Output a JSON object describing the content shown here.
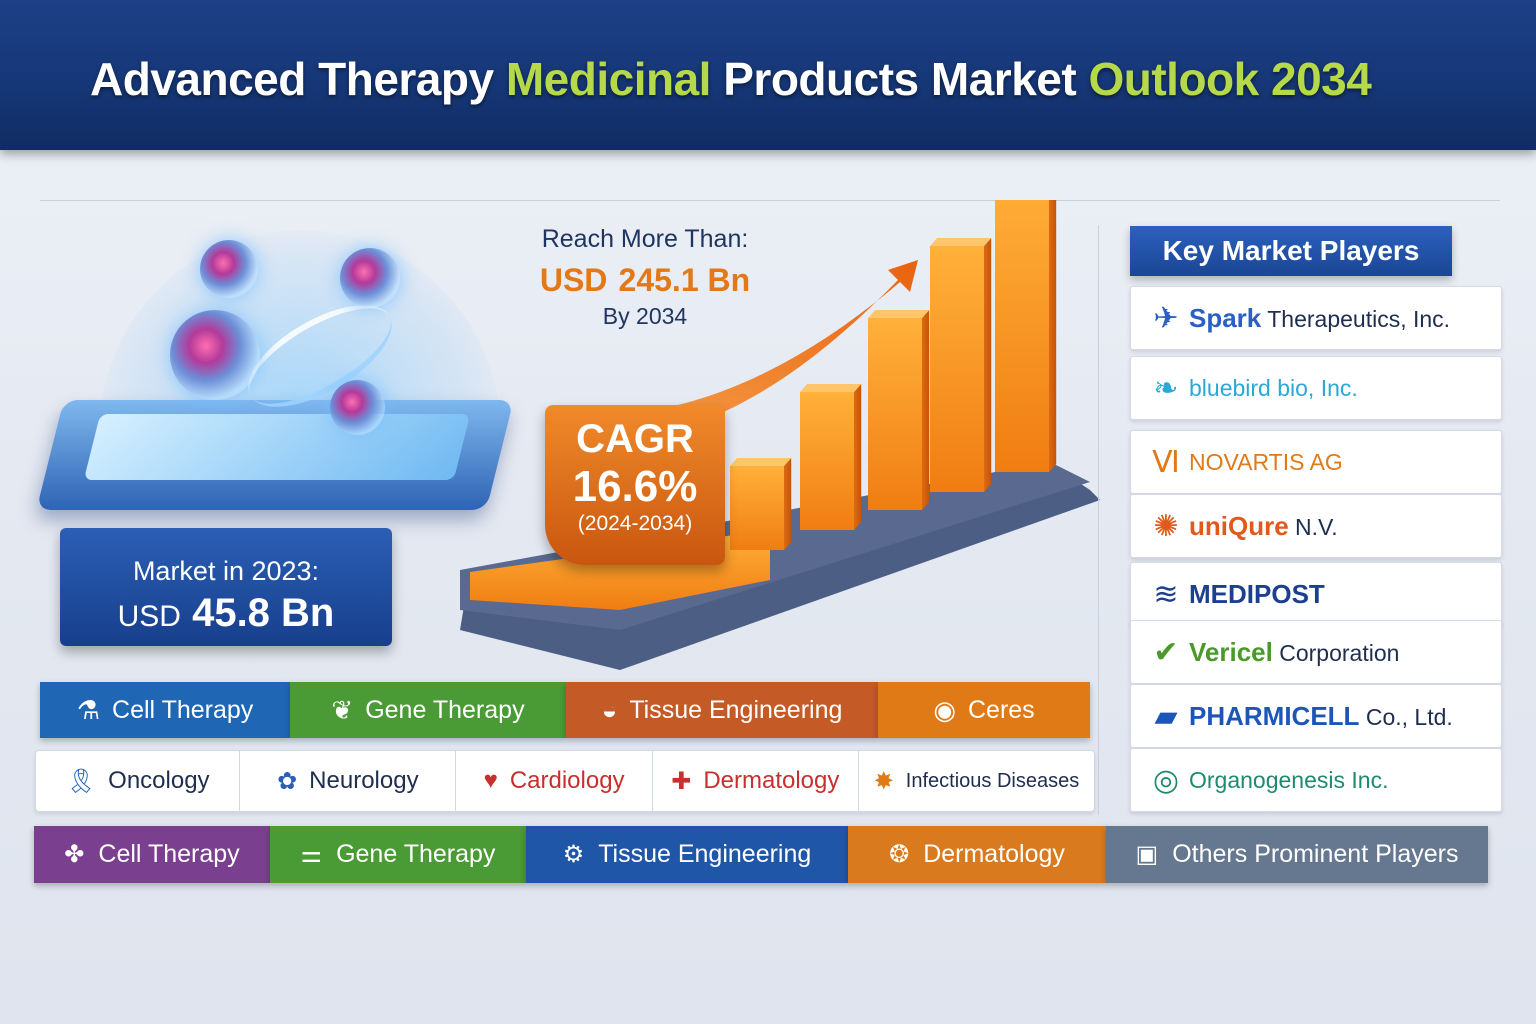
{
  "header": {
    "title_part1": "Advanced Therapy ",
    "title_part2": "Medicinal",
    "title_part3": " Products Market ",
    "title_part4": "Outlook 2034"
  },
  "market_2023": {
    "label": "Market in 2023:",
    "currency": "USD",
    "value": "45.8 Bn"
  },
  "forecast": {
    "reach_label": "Reach More Than:",
    "currency": "USD",
    "value": "245.1 Bn",
    "by_year": "By 2034"
  },
  "cagr": {
    "label": "CAGR",
    "value": "16.6%",
    "period": "(2024-2034)"
  },
  "chart_data": {
    "type": "bar",
    "categories": [
      "",
      "",
      "",
      "",
      ""
    ],
    "series": [
      {
        "values": [
          1,
          2,
          3,
          4,
          5
        ]
      }
    ]
  },
  "key_players": {
    "title": "Key Market Players",
    "items": [
      {
        "bold": "Spark",
        "rest": " Therapeutics, Inc.",
        "icon": "spark-logo",
        "color": "#2a5fc4"
      },
      {
        "bold": "",
        "rest": "bluebird bio, Inc.",
        "icon": "bluebird-logo",
        "color": "#2aa8d8"
      },
      {
        "bold": "",
        "rest": "NOVARTIS AG",
        "icon": "novartis-logo",
        "color": "#e07a17"
      },
      {
        "bold": "uniQure",
        "rest": " N.V.",
        "icon": "uniqure-logo",
        "color": "#e2591c"
      },
      {
        "bold": "MEDIPOST",
        "rest": "",
        "icon": "medipost-logo",
        "color": "#1c3f8f"
      },
      {
        "bold": "Vericel",
        "rest": " Corporation",
        "icon": "vericel-logo",
        "color": "#4a9a2a"
      },
      {
        "bold": "PHARMICELL",
        "rest": " Co., Ltd.",
        "icon": "pharmicell-logo",
        "color": "#1c56b8"
      },
      {
        "bold": "",
        "rest": "Organogenesis Inc.",
        "icon": "organogenesis-logo",
        "color": "#1f8a6e"
      }
    ]
  },
  "product_strip": [
    {
      "label": "Cell Therapy",
      "color": "#1f67b5",
      "icon": "cell-therapy-icon"
    },
    {
      "label": "Gene Therapy",
      "color": "#4a9a35",
      "icon": "gene-therapy-icon"
    },
    {
      "label": "Tissue Engineering",
      "color": "#c45a26",
      "icon": "tissue-engineering-icon"
    },
    {
      "label": "Ceres",
      "color": "#e07a17",
      "icon": "ceres-icon"
    }
  ],
  "application_strip": [
    {
      "label": "Oncology",
      "icon": "ribbon-icon",
      "color": "#1f5fb8"
    },
    {
      "label": "Neurology",
      "icon": "brain-icon",
      "color": "#2c5fb3"
    },
    {
      "label": "Cardiology",
      "icon": "heart-icon",
      "color": "#c7302f"
    },
    {
      "label": "Dermatology",
      "icon": "cross-icon",
      "color": "#c7302f"
    },
    {
      "label": "Infectious Diseases",
      "icon": "virus-icon",
      "color": "#e07a17"
    }
  ],
  "segment_strip": [
    {
      "label": "Cell Therapy",
      "color": "#7b3f8f",
      "icon": "cell-icon"
    },
    {
      "label": "Gene Therapy",
      "color": "#4a9a35",
      "icon": "dna-icon"
    },
    {
      "label": "Tissue Engineering",
      "color": "#2056a8",
      "icon": "tissue-icon"
    },
    {
      "label": "Dermatology",
      "color": "#d97a1e",
      "icon": "skin-icon"
    },
    {
      "label": "Others Prominent Players",
      "color": "#66788f",
      "icon": "box-icon"
    }
  ]
}
